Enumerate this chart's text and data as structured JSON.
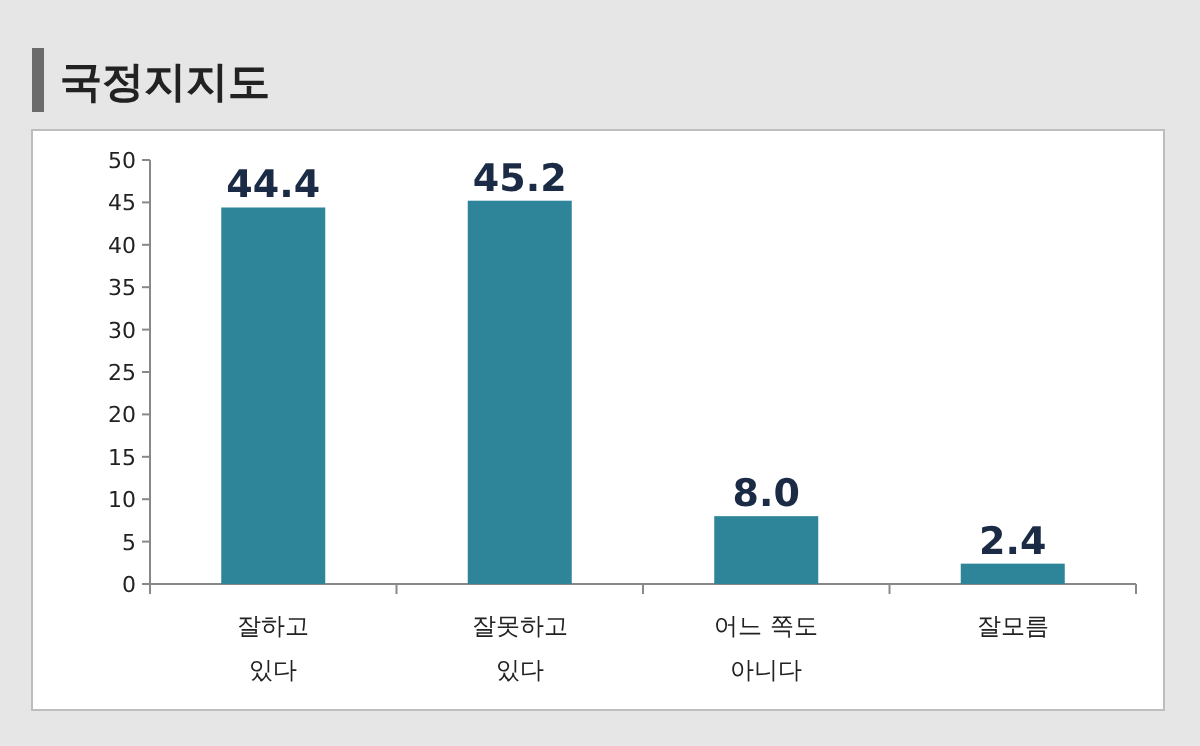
{
  "chart_data": {
    "type": "bar",
    "title": "국정지지도",
    "categories": [
      "잘하고 있다",
      "잘못하고 있다",
      "어느 쪽도 아니다",
      "잘모름"
    ],
    "values": [
      44.4,
      45.2,
      8.0,
      2.4
    ],
    "value_labels": [
      "44.4",
      "45.2",
      "8.0",
      "2.4"
    ],
    "color": "#2e8499",
    "ylim": [
      0,
      50
    ],
    "yticks": [
      0,
      5,
      10,
      15,
      20,
      25,
      30,
      35,
      40,
      45,
      50
    ],
    "grid": false
  }
}
